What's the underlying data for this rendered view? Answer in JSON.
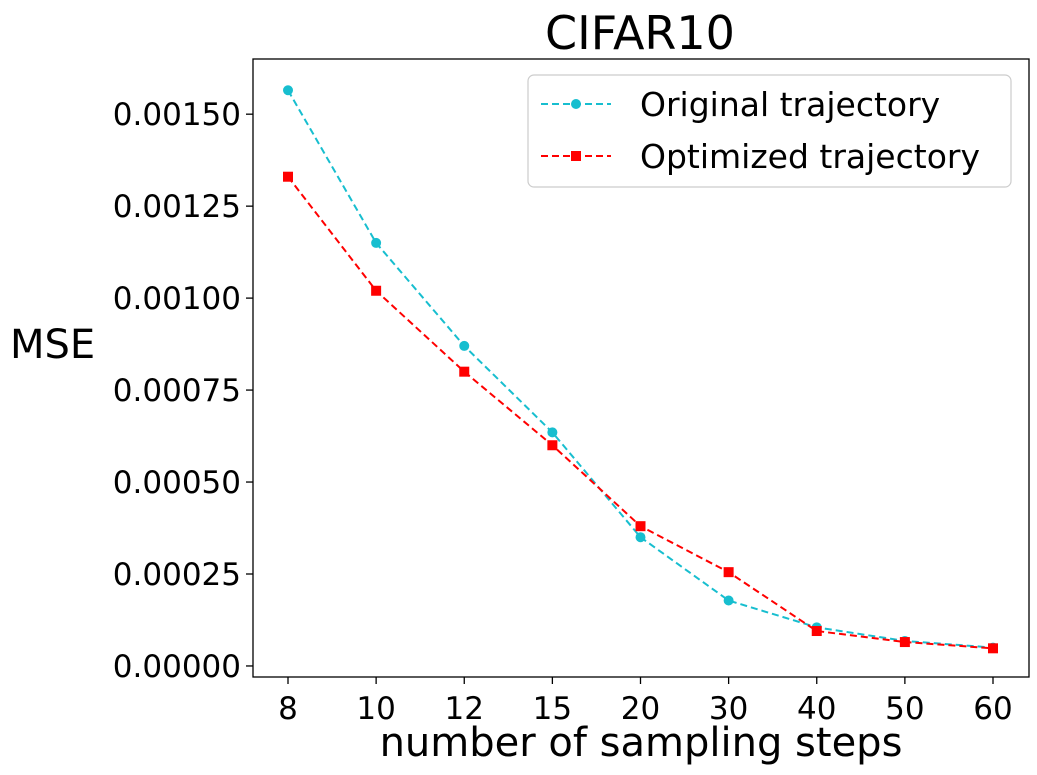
{
  "chart_data": {
    "type": "line",
    "title": "CIFAR10",
    "xlabel": "number of sampling steps",
    "ylabel": "MSE",
    "categories": [
      "8",
      "10",
      "12",
      "15",
      "20",
      "30",
      "40",
      "50",
      "60"
    ],
    "yticks": [
      "0.00000",
      "0.00025",
      "0.00050",
      "0.00075",
      "0.00100",
      "0.00125",
      "0.00150"
    ],
    "ylim": [
      -3e-05,
      0.00165
    ],
    "grid": false,
    "legend_position": "top-right",
    "series": [
      {
        "name": "Original trajectory",
        "color": "#17becf",
        "marker": "circle",
        "line_style": "dashed",
        "values": [
          0.001565,
          0.00115,
          0.00087,
          0.000635,
          0.00035,
          0.000178,
          0.000105,
          6.8e-05,
          5e-05
        ]
      },
      {
        "name": "Optimized trajectory",
        "color": "#ff0000",
        "marker": "square",
        "line_style": "dashed",
        "values": [
          0.00133,
          0.00102,
          0.0008,
          0.0006,
          0.00038,
          0.000255,
          9.5e-05,
          6.5e-05,
          4.8e-05
        ]
      }
    ]
  }
}
